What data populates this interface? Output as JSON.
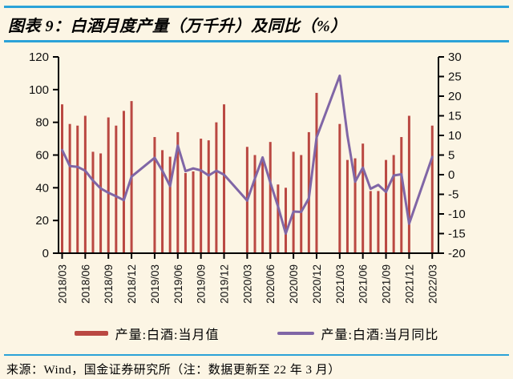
{
  "header": {
    "title": "图表 9：白酒月度产量（万千升）及同比（%）"
  },
  "footer": {
    "source": "来源：Wind，国金证券研究所（注：数据更新至 22 年 3 月）"
  },
  "colors": {
    "background": "#fcf5e4",
    "divider_blue": "#2ba2d8",
    "bar_red": "#ba4842",
    "line_purple": "#8066a6",
    "axis_black": "#000000"
  },
  "legend": [
    {
      "label": "产量:白酒:当月值",
      "type": "bar",
      "color": "#ba4842"
    },
    {
      "label": "产量:白酒:当月同比",
      "type": "line",
      "color": "#8066a6"
    }
  ],
  "chart_data": {
    "type": "bar",
    "title": "白酒月度产量（万千升）及同比（%）",
    "xlabel": "",
    "ylabel_left": "产量（万千升）",
    "ylabel_right": "同比（%）",
    "x": [
      "2018/03",
      "2018/04",
      "2018/05",
      "2018/06",
      "2018/07",
      "2018/08",
      "2018/09",
      "2018/10",
      "2018/11",
      "2018/12",
      "2019/03",
      "2019/04",
      "2019/05",
      "2019/06",
      "2019/07",
      "2019/08",
      "2019/09",
      "2019/10",
      "2019/11",
      "2019/12",
      "2020/03",
      "2020/04",
      "2020/05",
      "2020/06",
      "2020/07",
      "2020/08",
      "2020/09",
      "2020/10",
      "2020/11",
      "2020/12",
      "2021/03",
      "2021/04",
      "2021/05",
      "2021/06",
      "2021/07",
      "2021/08",
      "2021/09",
      "2021/10",
      "2021/11",
      "2021/12",
      "2022/03"
    ],
    "series": [
      {
        "name": "产量:白酒:当月值",
        "type": "bar",
        "axis": "left",
        "color": "#ba4842",
        "values": [
          91,
          79,
          78,
          84,
          62,
          61,
          83,
          78,
          87,
          93,
          71,
          63,
          59,
          74,
          49,
          50,
          70,
          69,
          80,
          91,
          65,
          60,
          57,
          68,
          42,
          40,
          62,
          60,
          74,
          98,
          79,
          57,
          58,
          67,
          38,
          38,
          57,
          60,
          71,
          84,
          78
        ]
      },
      {
        "name": "产量:白酒:当月同比",
        "type": "line",
        "axis": "right",
        "color": "#8066a6",
        "values": [
          6.3,
          2.2,
          2.0,
          1.0,
          -1.5,
          -3.5,
          -4.6,
          -5.5,
          -6.5,
          -0.5,
          4.3,
          1.0,
          -2.9,
          7.4,
          0.9,
          1.6,
          1.1,
          -0.2,
          1.0,
          0.0,
          -6.6,
          -1.0,
          4.4,
          -2.0,
          -8.1,
          -15.0,
          -9.4,
          -9.5,
          -6.0,
          9.5,
          25.2,
          10.0,
          -1.8,
          1.8,
          -3.6,
          -2.6,
          -4.4,
          -0.2,
          0.1,
          -12.5,
          4.5
        ]
      }
    ],
    "left_axis": {
      "min": 0,
      "max": 120,
      "step": 20,
      "ticks": [
        0,
        20,
        40,
        60,
        80,
        100,
        120
      ]
    },
    "right_axis": {
      "min": -20,
      "max": 30,
      "step": 5,
      "ticks": [
        30,
        25,
        20,
        15,
        10,
        5,
        0,
        -5,
        -10,
        -15,
        -20
      ]
    },
    "x_tick_labels": [
      "2018/03",
      "2018/06",
      "2018/09",
      "2018/12",
      "2019/03",
      "2019/06",
      "2019/09",
      "2019/12",
      "2020/03",
      "2020/06",
      "2020/09",
      "2020/12",
      "2021/03",
      "2021/06",
      "2021/09",
      "2021/12",
      "2022/03"
    ],
    "notes": "bars monthly, Jan/Feb missing each year; line connects across gaps",
    "grid": false,
    "legend_position": "bottom"
  }
}
